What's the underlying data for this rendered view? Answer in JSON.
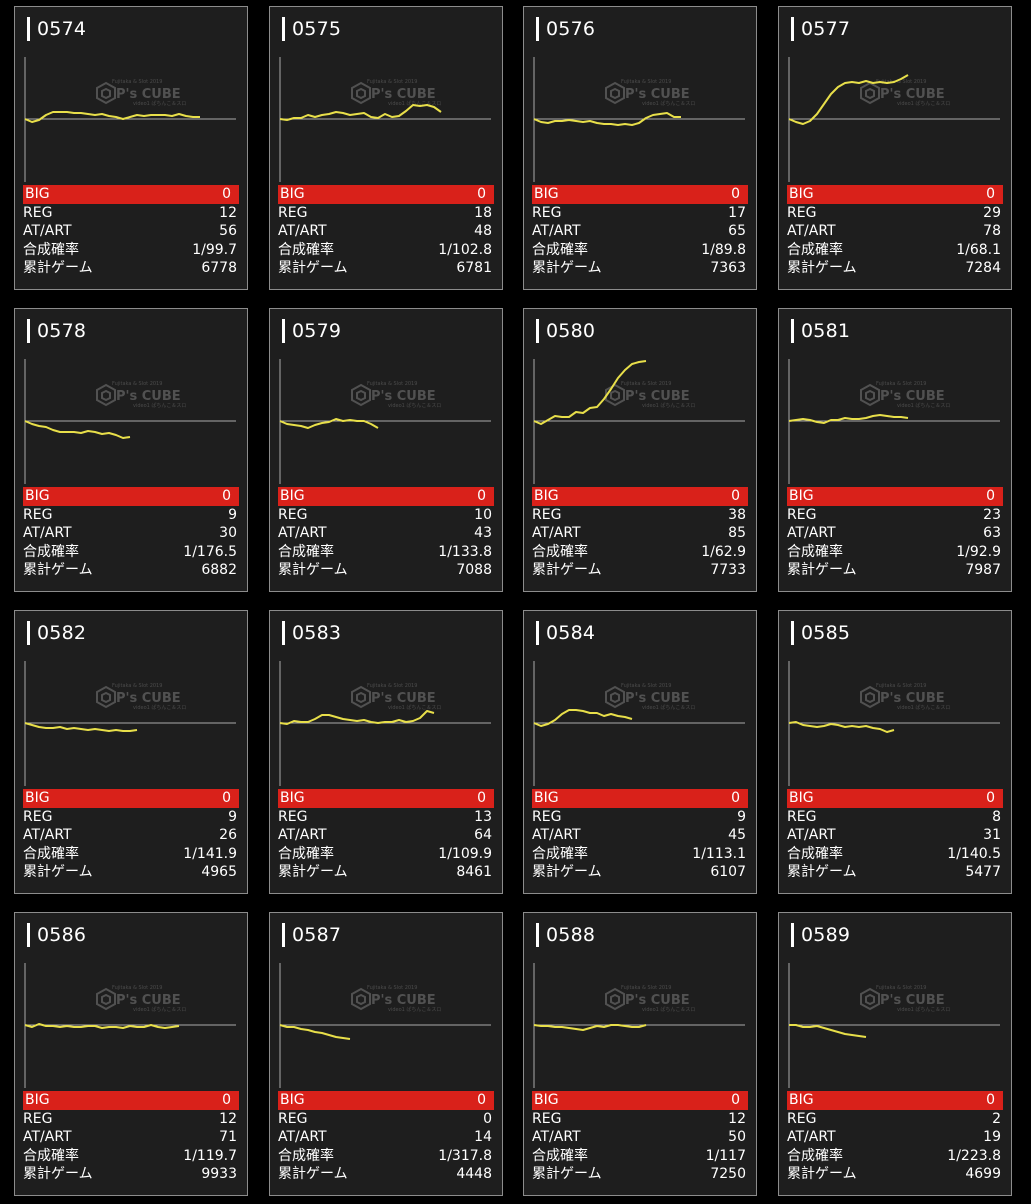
{
  "labels": {
    "big": "BIG",
    "reg": "REG",
    "at": "AT/ART",
    "prob": "合成確率",
    "games": "累計ゲーム"
  },
  "watermark": {
    "brand": "P's CUBE",
    "top": "Fujitaka & Slot 2019",
    "bottom": "video1 ぱちんこ＆スロ"
  },
  "colors": {
    "background": "#000000",
    "card": "#1e1e1e",
    "line": "#e8df4a",
    "big_bar": "#d9211a",
    "axis": "#aaaaaa"
  },
  "machines": [
    {
      "id": "0574",
      "big": "0",
      "reg": "12",
      "at": "56",
      "prob": "1/99.7",
      "games": "6778",
      "trend": [
        0,
        -3,
        -1,
        4,
        7,
        7,
        7,
        6,
        6,
        5,
        4,
        5,
        3,
        2,
        0,
        2,
        4,
        3,
        4,
        4,
        4,
        3,
        5,
        3,
        2,
        2
      ]
    },
    {
      "id": "0575",
      "big": "0",
      "reg": "18",
      "at": "48",
      "prob": "1/102.8",
      "games": "6781",
      "trend": [
        0,
        -1,
        1,
        1,
        4,
        2,
        4,
        5,
        7,
        6,
        4,
        5,
        6,
        2,
        1,
        5,
        2,
        3,
        8,
        14,
        13,
        14,
        12,
        7
      ]
    },
    {
      "id": "0576",
      "big": "0",
      "reg": "17",
      "at": "65",
      "prob": "1/89.8",
      "games": "7363",
      "trend": [
        0,
        -3,
        -4,
        -2,
        -2,
        -1,
        -2,
        -3,
        -2,
        -4,
        -5,
        -5,
        -6,
        -5,
        -6,
        -4,
        1,
        4,
        5,
        6,
        2,
        2
      ]
    },
    {
      "id": "0577",
      "big": "0",
      "reg": "29",
      "at": "78",
      "prob": "1/68.1",
      "games": "7284",
      "trend": [
        0,
        -3,
        -5,
        -2,
        5,
        15,
        25,
        32,
        36,
        37,
        36,
        38,
        36,
        37,
        36,
        37,
        40,
        44
      ]
    },
    {
      "id": "0578",
      "big": "0",
      "reg": "9",
      "at": "30",
      "prob": "1/176.5",
      "games": "6882",
      "trend": [
        0,
        -3,
        -5,
        -6,
        -9,
        -11,
        -11,
        -11,
        -12,
        -10,
        -11,
        -13,
        -12,
        -14,
        -17,
        -16
      ]
    },
    {
      "id": "0579",
      "big": "0",
      "reg": "10",
      "at": "43",
      "prob": "1/133.8",
      "games": "7088",
      "trend": [
        0,
        -3,
        -4,
        -5,
        -7,
        -4,
        -2,
        -1,
        2,
        0,
        1,
        0,
        0,
        -3,
        -7
      ]
    },
    {
      "id": "0580",
      "big": "0",
      "reg": "38",
      "at": "85",
      "prob": "1/62.9",
      "games": "7733",
      "trend": [
        0,
        -3,
        1,
        5,
        4,
        4,
        9,
        8,
        13,
        14,
        22,
        32,
        43,
        51,
        57,
        59,
        60
      ]
    },
    {
      "id": "0581",
      "big": "0",
      "reg": "23",
      "at": "63",
      "prob": "1/92.9",
      "games": "7987",
      "trend": [
        0,
        1,
        2,
        1,
        -1,
        -2,
        1,
        1,
        3,
        2,
        2,
        3,
        5,
        6,
        5,
        4,
        4,
        3
      ]
    },
    {
      "id": "0582",
      "big": "0",
      "reg": "9",
      "at": "26",
      "prob": "1/141.9",
      "games": "4965",
      "trend": [
        0,
        -2,
        -4,
        -5,
        -5,
        -4,
        -6,
        -5,
        -6,
        -7,
        -6,
        -7,
        -8,
        -7,
        -8,
        -8,
        -7
      ]
    },
    {
      "id": "0583",
      "big": "0",
      "reg": "13",
      "at": "64",
      "prob": "1/109.9",
      "games": "8461",
      "trend": [
        0,
        -1,
        2,
        1,
        1,
        4,
        8,
        8,
        6,
        4,
        3,
        2,
        3,
        1,
        0,
        1,
        1,
        3,
        1,
        2,
        5,
        12,
        10
      ]
    },
    {
      "id": "0584",
      "big": "0",
      "reg": "9",
      "at": "45",
      "prob": "1/113.1",
      "games": "6107",
      "trend": [
        0,
        -3,
        -1,
        3,
        9,
        13,
        13,
        12,
        10,
        10,
        7,
        9,
        7,
        6,
        4
      ]
    },
    {
      "id": "0585",
      "big": "0",
      "reg": "8",
      "at": "31",
      "prob": "1/140.5",
      "games": "5477",
      "trend": [
        0,
        1,
        -2,
        -3,
        -4,
        -3,
        -1,
        -2,
        -4,
        -3,
        -4,
        -3,
        -5,
        -6,
        -9,
        -7
      ]
    },
    {
      "id": "0586",
      "big": "0",
      "reg": "12",
      "at": "71",
      "prob": "1/119.7",
      "games": "9933",
      "trend": [
        0,
        -2,
        1,
        -1,
        -1,
        -2,
        -1,
        -2,
        -2,
        -1,
        -1,
        -3,
        -2,
        -2,
        -3,
        -1,
        -2,
        -2,
        0,
        -2,
        -3,
        -2,
        -1
      ]
    },
    {
      "id": "0587",
      "big": "0",
      "reg": "0",
      "at": "14",
      "prob": "1/317.8",
      "games": "4448",
      "trend": [
        0,
        -2,
        -2,
        -4,
        -5,
        -7,
        -8,
        -10,
        -12,
        -13,
        -14
      ]
    },
    {
      "id": "0588",
      "big": "0",
      "reg": "12",
      "at": "50",
      "prob": "1/117",
      "games": "7250",
      "trend": [
        0,
        -1,
        -1,
        -2,
        -2,
        -3,
        -4,
        -5,
        -3,
        -1,
        -2,
        0,
        0,
        -1,
        -2,
        -2,
        0
      ]
    },
    {
      "id": "0589",
      "big": "0",
      "reg": "2",
      "at": "19",
      "prob": "1/223.8",
      "games": "4699",
      "trend": [
        0,
        0,
        -2,
        -2,
        -1,
        -3,
        -5,
        -7,
        -9,
        -10,
        -11,
        -12
      ]
    }
  ]
}
